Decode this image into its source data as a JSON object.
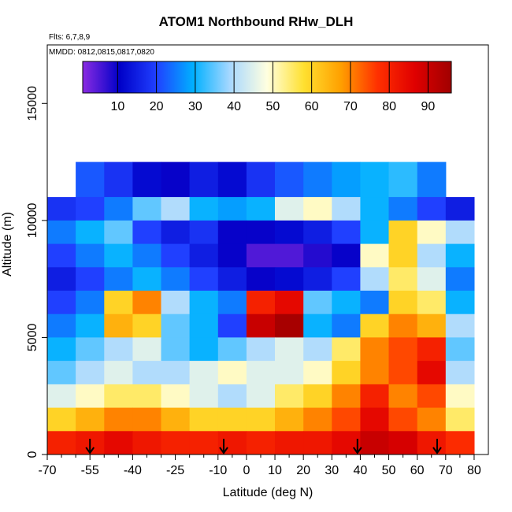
{
  "header": {
    "title": "ATOM1 Northbound RHw_DLH",
    "flights_note": "Flts: 6,7,8,9",
    "dates_note": "MMDD: 0812,0815,0817,0820"
  },
  "colorbar": {
    "ticks": [
      "10",
      "20",
      "30",
      "40",
      "50",
      "60",
      "70",
      "80",
      "90"
    ],
    "stops": [
      "#8a2be2",
      "#0000c8",
      "#2040ff",
      "#00b0ff",
      "#a8d8ff",
      "#ffffe0",
      "#ffe030",
      "#ffa000",
      "#ff3000",
      "#e00000",
      "#a00000"
    ]
  },
  "chart_data": {
    "type": "heatmap",
    "title": "ATOM1 Northbound RHw_DLH",
    "xlabel": "Latitude (deg N)",
    "ylabel": "Altitude (m)",
    "xlim": [
      -70,
      85
    ],
    "ylim": [
      0,
      17500
    ],
    "x_tick_labels": [
      "-70",
      "-55",
      "-40",
      "-25",
      "-10",
      "0",
      "10",
      "20",
      "30",
      "40",
      "50",
      "60",
      "70",
      "80"
    ],
    "x_tick_values": [
      -70,
      -55,
      -40,
      -25,
      -10,
      0,
      10,
      20,
      30,
      40,
      50,
      60,
      70,
      80
    ],
    "x_minor_ticks": [
      -65,
      -60,
      -50,
      -45,
      -35,
      -30,
      -20,
      -15,
      -5,
      5,
      15,
      25,
      35,
      45,
      55,
      65,
      75
    ],
    "y_tick_labels": [
      "0",
      "5000",
      "10000",
      "15000"
    ],
    "y_tick_values": [
      0,
      5000,
      10000,
      15000
    ],
    "colorbar_range": [
      1,
      96
    ],
    "colorbar_ticks": [
      10,
      20,
      30,
      40,
      50,
      60,
      70,
      80,
      90
    ],
    "profile_markers_lat": [
      -55,
      -8,
      39,
      67
    ],
    "field_grid": {
      "lat_edges": [
        -70,
        -60,
        -50,
        -40,
        -30,
        -20,
        -10,
        0,
        10,
        20,
        30,
        40,
        50,
        60,
        70,
        80
      ],
      "alt_edges": [
        0,
        1000,
        2000,
        3000,
        4000,
        5000,
        6000,
        7000,
        8000,
        9000,
        10000,
        11000,
        12500
      ],
      "rows_from_top": [
        [
          null,
          22,
          18,
          12,
          10,
          15,
          12,
          18,
          22,
          25,
          28,
          30,
          32,
          25,
          null
        ],
        [
          18,
          20,
          25,
          35,
          40,
          30,
          28,
          30,
          45,
          50,
          40,
          30,
          25,
          20,
          15
        ],
        [
          25,
          30,
          35,
          20,
          15,
          18,
          10,
          10,
          12,
          15,
          20,
          30,
          60,
          50,
          40
        ],
        [
          20,
          25,
          30,
          25,
          20,
          15,
          10,
          5,
          5,
          8,
          10,
          50,
          60,
          40,
          30
        ],
        [
          15,
          20,
          25,
          30,
          25,
          20,
          15,
          10,
          12,
          15,
          20,
          40,
          55,
          45,
          25
        ],
        [
          20,
          25,
          60,
          70,
          40,
          30,
          25,
          80,
          85,
          35,
          30,
          25,
          60,
          55,
          30
        ],
        [
          25,
          30,
          65,
          60,
          35,
          30,
          20,
          90,
          95,
          30,
          25,
          60,
          70,
          65,
          40
        ],
        [
          30,
          35,
          40,
          45,
          35,
          30,
          35,
          40,
          45,
          40,
          55,
          70,
          75,
          80,
          35
        ],
        [
          35,
          40,
          45,
          40,
          40,
          45,
          50,
          45,
          45,
          50,
          60,
          70,
          75,
          85,
          40
        ],
        [
          45,
          50,
          55,
          55,
          50,
          45,
          40,
          45,
          55,
          60,
          70,
          80,
          70,
          75,
          50
        ],
        [
          60,
          65,
          70,
          70,
          65,
          60,
          60,
          60,
          65,
          70,
          75,
          85,
          75,
          70,
          55
        ],
        [
          80,
          82,
          85,
          82,
          80,
          80,
          82,
          80,
          82,
          82,
          85,
          90,
          88,
          82,
          78
        ]
      ]
    }
  }
}
